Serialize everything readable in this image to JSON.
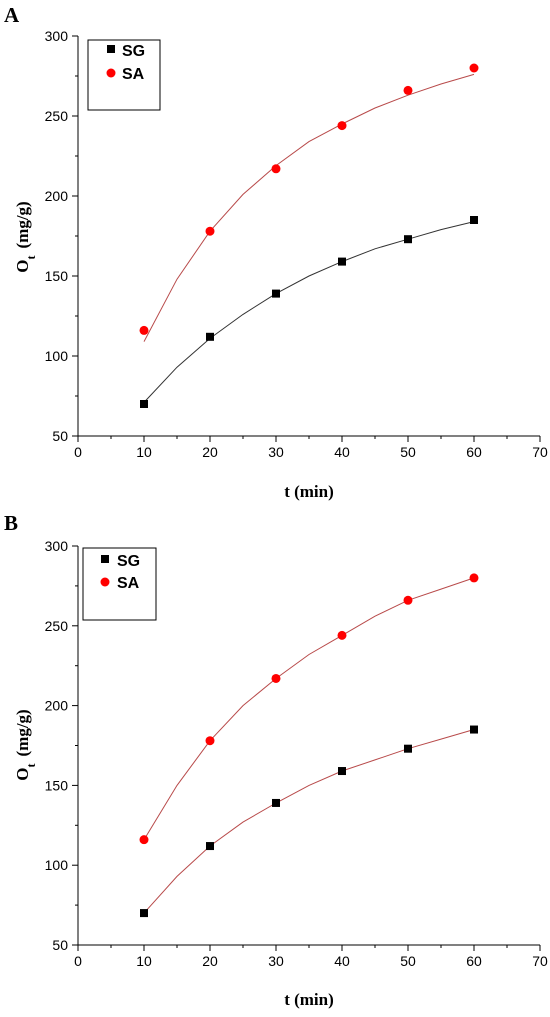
{
  "chart_data": [
    {
      "panel_label": "A",
      "type": "scatter",
      "xlabel": "t (min)",
      "ylabel_main": "O",
      "ylabel_sub": "t",
      "ylabel_unit": "(mg/g)",
      "xlim": [
        0,
        70
      ],
      "ylim": [
        50,
        300
      ],
      "xticks": [
        0,
        10,
        20,
        30,
        40,
        50,
        60,
        70
      ],
      "yticks": [
        50,
        100,
        150,
        200,
        250,
        300
      ],
      "legend_position": "top-left",
      "series": [
        {
          "name": "SG",
          "marker": "square",
          "color": "#000000",
          "fit_color": "#333333",
          "x": [
            10,
            20,
            30,
            40,
            50,
            60
          ],
          "y": [
            70,
            112,
            139,
            159,
            173,
            185
          ],
          "fit_x": [
            10,
            15,
            20,
            25,
            30,
            35,
            40,
            45,
            50,
            55,
            60
          ],
          "fit_y": [
            71,
            93,
            111,
            126,
            139,
            150,
            159,
            167,
            173,
            179,
            184
          ]
        },
        {
          "name": "SA",
          "marker": "circle",
          "color": "#ff0000",
          "fit_color": "#b84a4a",
          "x": [
            10,
            20,
            30,
            40,
            50,
            60
          ],
          "y": [
            116,
            178,
            217,
            244,
            266,
            280
          ],
          "fit_x": [
            10,
            15,
            20,
            25,
            30,
            35,
            40,
            45,
            50,
            55,
            60
          ],
          "fit_y": [
            109,
            148,
            178,
            201,
            219,
            234,
            245,
            255,
            263,
            270,
            276
          ]
        }
      ]
    },
    {
      "panel_label": "B",
      "type": "scatter",
      "xlabel": "t (min)",
      "ylabel_main": "O",
      "ylabel_sub": "t",
      "ylabel_unit": "(mg/g)",
      "xlim": [
        0,
        70
      ],
      "ylim": [
        50,
        300
      ],
      "xticks": [
        0,
        10,
        20,
        30,
        40,
        50,
        60,
        70
      ],
      "yticks": [
        50,
        100,
        150,
        200,
        250,
        300
      ],
      "legend_position": "top-left",
      "series": [
        {
          "name": "SG",
          "marker": "square",
          "color": "#000000",
          "fit_color": "#b84a4a",
          "x": [
            10,
            20,
            30,
            40,
            50,
            60
          ],
          "y": [
            70,
            112,
            139,
            159,
            173,
            185
          ],
          "fit_x": [
            10,
            15,
            20,
            25,
            30,
            35,
            40,
            45,
            50,
            55,
            60
          ],
          "fit_y": [
            70,
            93,
            112,
            127,
            139,
            150,
            159,
            166,
            173,
            179,
            185
          ]
        },
        {
          "name": "SA",
          "marker": "circle",
          "color": "#ff0000",
          "fit_color": "#b84a4a",
          "x": [
            10,
            20,
            30,
            40,
            50,
            60
          ],
          "y": [
            116,
            178,
            217,
            244,
            266,
            280
          ],
          "fit_x": [
            10,
            15,
            20,
            25,
            30,
            35,
            40,
            45,
            50,
            55,
            60
          ],
          "fit_y": [
            116,
            150,
            178,
            200,
            217,
            232,
            244,
            256,
            266,
            273,
            280
          ]
        }
      ]
    }
  ]
}
